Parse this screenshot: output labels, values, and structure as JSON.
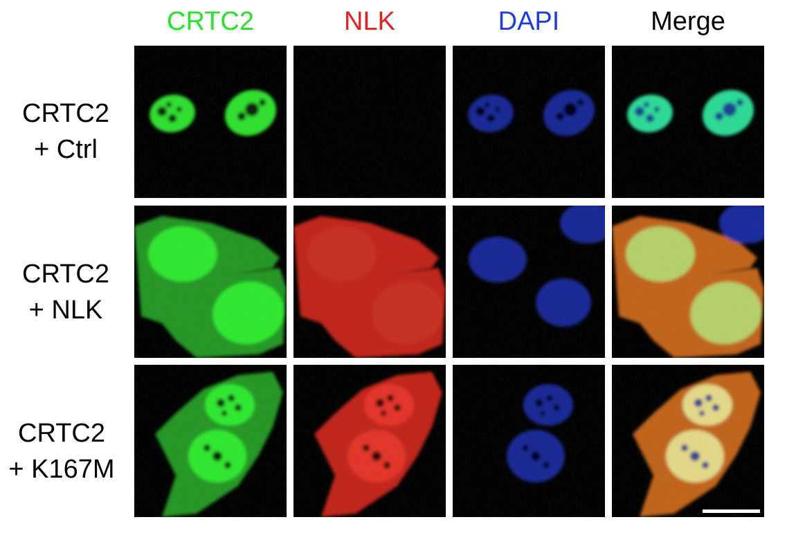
{
  "columns": [
    {
      "label": "CRTC2",
      "color": "#22e622",
      "channel": "green"
    },
    {
      "label": "NLK",
      "color": "#e61e1e",
      "channel": "red"
    },
    {
      "label": "DAPI",
      "color": "#1e3ce6",
      "channel": "blue"
    },
    {
      "label": "Merge",
      "color": "#000000",
      "channel": "merge"
    }
  ],
  "rows": [
    {
      "line1": "CRTC2",
      "line2": "+ Ctrl"
    },
    {
      "line1": "CRTC2",
      "line2": "+ NLK"
    },
    {
      "line1": "CRTC2",
      "line2": "+ K167M"
    }
  ],
  "scale_bar": true
}
